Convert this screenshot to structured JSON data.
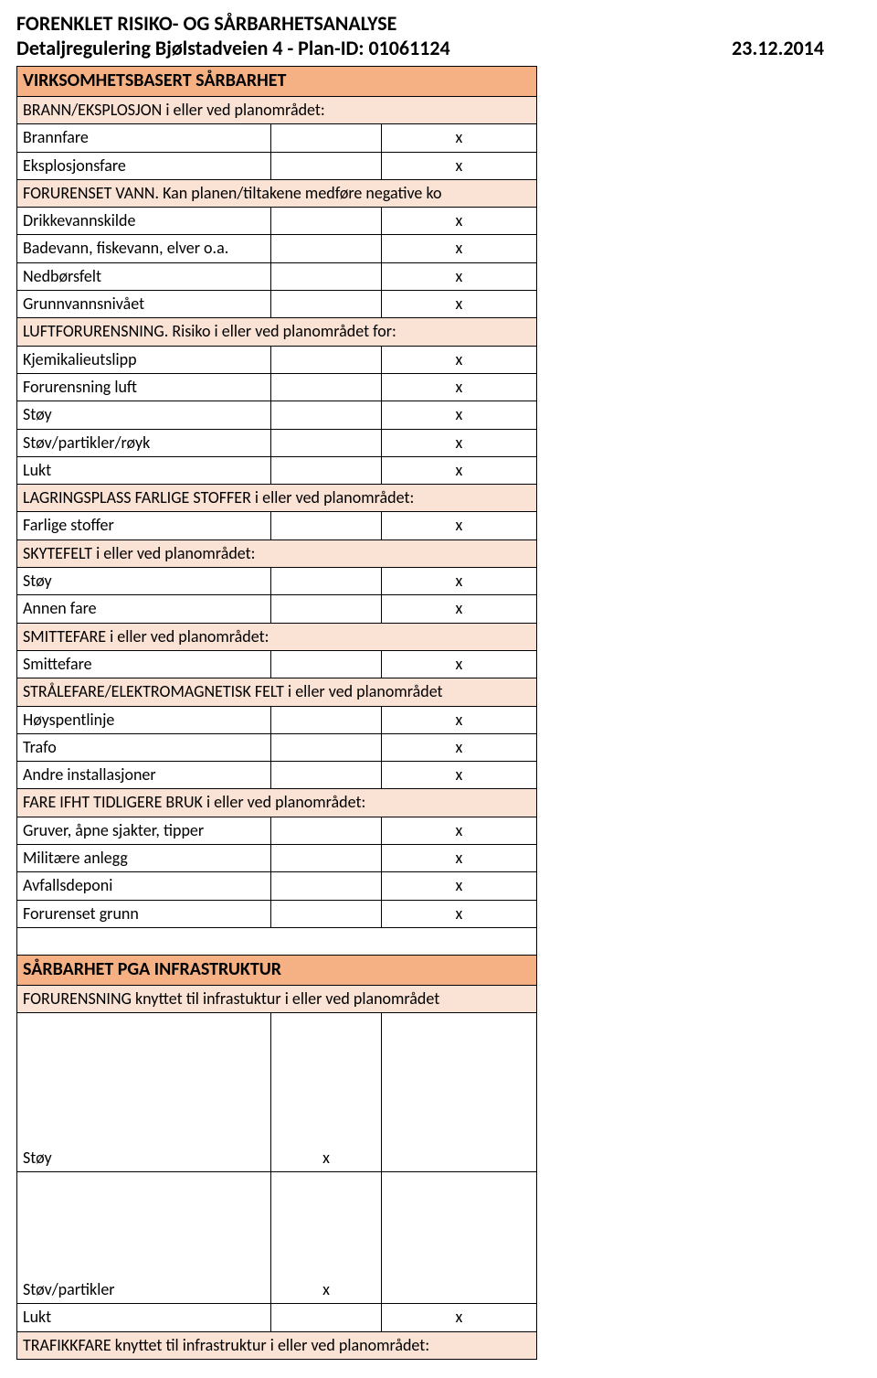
{
  "title1": "FORENKLET RISIKO- OG SÅRBARHETSANALYSE",
  "title2": "Detaljregulering Bjølstadveien 4 - Plan-ID: 01061124",
  "date": "23.12.2014",
  "mark": "x",
  "sections": {
    "s1": {
      "main": "VIRKSOMHETSBASERT SÅRBARHET",
      "g1": {
        "hdr": "BRANN/EKSPLOSJON i eller ved planområdet:",
        "r1": "Brannfare",
        "r2": "Eksplosjonsfare"
      },
      "g2": {
        "hdr": "FORURENSET VANN. Kan planen/tiltakene medføre negative ko",
        "r1": "Drikkevannskilde",
        "r2": "Badevann, fiskevann, elver o.a.",
        "r3": "Nedbørsfelt",
        "r4": "Grunnvannsnivået"
      },
      "g3": {
        "hdr": "LUFTFORURENSNING. Risiko i eller ved planområdet for:",
        "r1": "Kjemikalieutslipp",
        "r2": "Forurensning luft",
        "r3": "Støy",
        "r4": "Støv/partikler/røyk",
        "r5": "Lukt"
      },
      "g4": {
        "hdr": "LAGRINGSPLASS FARLIGE STOFFER i eller ved planområdet:",
        "r1": "Farlige stoffer"
      },
      "g5": {
        "hdr": "SKYTEFELT i eller ved planområdet:",
        "r1": "Støy",
        "r2": "Annen fare"
      },
      "g6": {
        "hdr": "SMITTEFARE i eller ved planområdet:",
        "r1": "Smittefare"
      },
      "g7": {
        "hdr": "STRÅLEFARE/ELEKTROMAGNETISK FELT i eller ved planområdet",
        "r1": "Høyspentlinje",
        "r2": "Trafo",
        "r3": "Andre installasjoner"
      },
      "g8": {
        "hdr": "FARE IFHT TIDLIGERE BRUK i eller ved planområdet:",
        "r1": "Gruver, åpne sjakter, tipper",
        "r2": "Militære anlegg",
        "r3": "Avfallsdeponi",
        "r4": "Forurenset grunn"
      }
    },
    "s2": {
      "main": "SÅRBARHET PGA INFRASTRUKTUR",
      "g1": {
        "hdr": "FORURENSNING knyttet til infrastuktur i eller ved planområdet",
        "r1": "Støy",
        "r2": "Støv/partikler",
        "r3": "Lukt"
      },
      "g2": {
        "hdr": "TRAFIKKFARE knyttet til infrastruktur i eller ved planområdet:"
      }
    }
  }
}
